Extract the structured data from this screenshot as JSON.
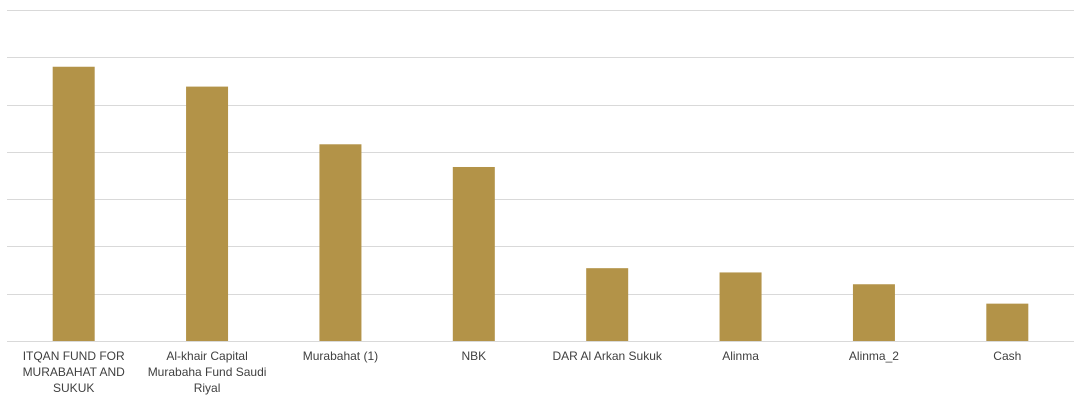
{
  "chart_data": {
    "type": "bar",
    "title": "",
    "xlabel": "",
    "ylabel": "",
    "categories": [
      [
        "ITQAN FUND FOR",
        "MURABAHAT AND",
        "SUKUK"
      ],
      [
        "Al-khair Capital",
        "Murabaha Fund Saudi",
        "Riyal"
      ],
      [
        "Murabahat (1)"
      ],
      [
        "NBK"
      ],
      [
        "DAR Al Arkan Sukuk"
      ],
      [
        "Alinma"
      ],
      [
        "Alinma_2"
      ],
      [
        "Cash"
      ]
    ],
    "values": [
      5.8,
      5.38,
      4.16,
      3.68,
      1.54,
      1.45,
      1.2,
      0.79
    ],
    "ylim": [
      0,
      7
    ],
    "gridlines": [
      0,
      1,
      2,
      3,
      4,
      5,
      6,
      7
    ],
    "grid": true,
    "bar_color": "#b39348",
    "grid_color": "#d9d9d9"
  }
}
